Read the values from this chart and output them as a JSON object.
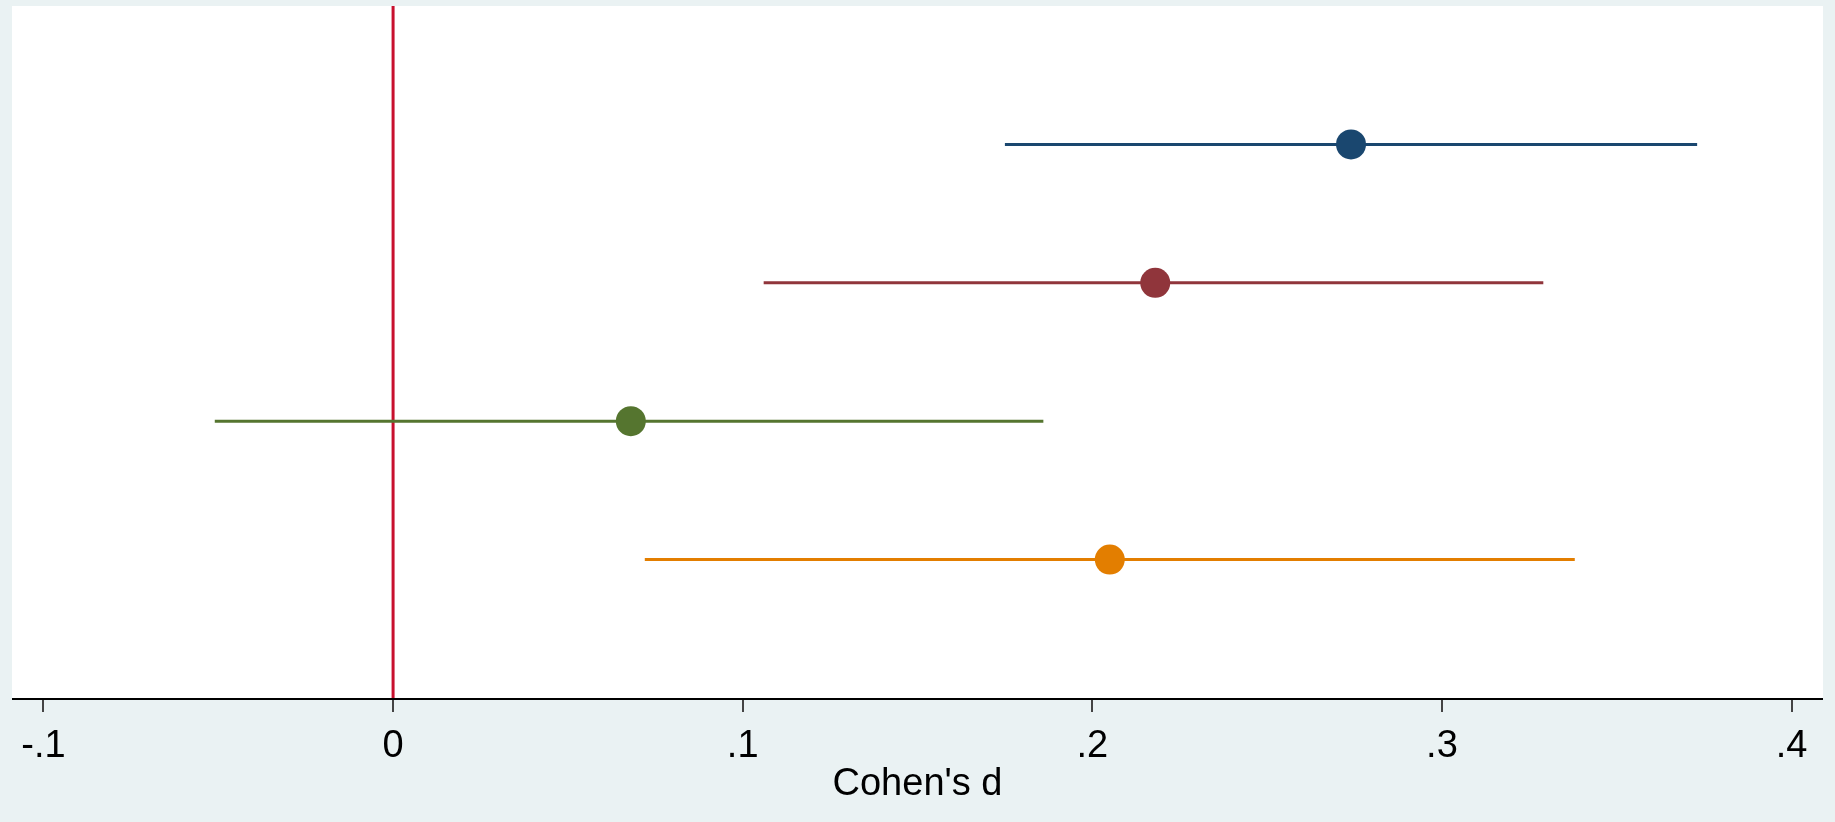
{
  "chart_data": {
    "type": "scatter",
    "orientation": "horizontal",
    "xlabel": "Cohen's d",
    "categories": [
      null,
      null,
      null,
      null
    ],
    "values": [
      0.274,
      0.218,
      0.068,
      0.205
    ],
    "colors": [
      "#1a476f",
      "#90353b",
      "#55752f",
      "#e37e00"
    ],
    "errors": [
      [
        0.175,
        0.373
      ],
      [
        0.106,
        0.329
      ],
      [
        -0.051,
        0.186
      ],
      [
        0.072,
        0.338
      ]
    ],
    "xlim": [
      -0.109,
      0.409
    ],
    "xticks": [
      {
        "value": -0.1,
        "label": "-.1"
      },
      {
        "value": 0,
        "label": "0"
      },
      {
        "value": 0.1,
        "label": ".1"
      },
      {
        "value": 0.2,
        "label": ".2"
      },
      {
        "value": 0.3,
        "label": ".3"
      },
      {
        "value": 0.4,
        "label": ".4"
      }
    ],
    "ref_lines": [
      {
        "axis": "x",
        "value": 0,
        "color": "#c8102e"
      }
    ],
    "tick_labels": "x",
    "marker": "circle"
  }
}
